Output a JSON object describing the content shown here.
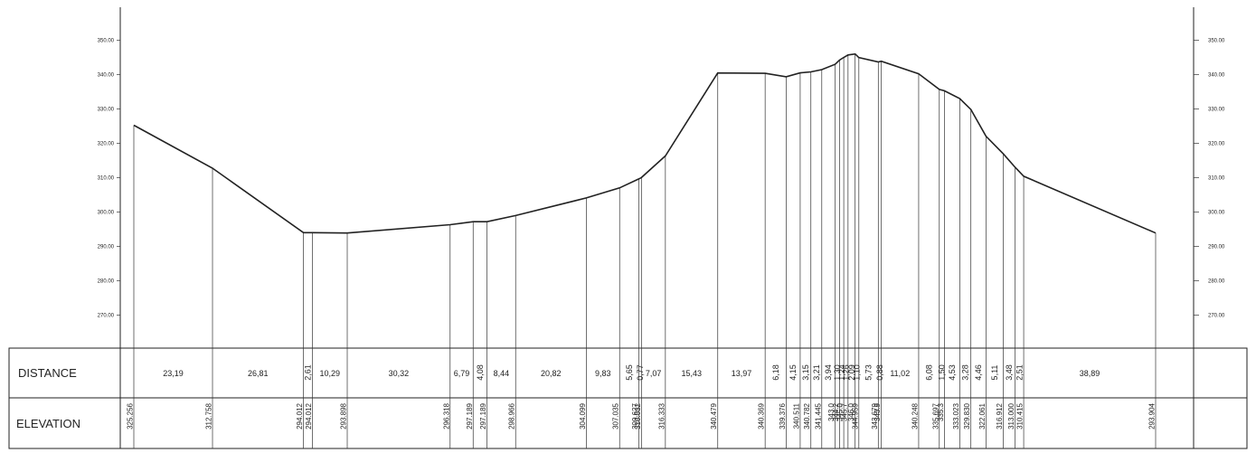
{
  "chart_data": {
    "type": "line",
    "title": "",
    "ylim": [
      265,
      355
    ],
    "y_ticks": [
      "350.00",
      "340.00",
      "330.00",
      "320.00",
      "310.00",
      "300.00",
      "290.00",
      "280.00",
      "270.00"
    ],
    "row_titles": {
      "distance": "DISTANCE",
      "elevation": "ELEVATION"
    },
    "chainage": [
      0,
      23.19,
      50.0,
      52.61,
      62.9,
      93.22,
      100.01,
      104.09,
      112.53,
      133.35,
      143.18,
      148.83,
      149.6,
      156.67,
      172.1,
      186.07,
      192.25,
      196.4,
      199.55,
      202.76,
      206.7,
      208.0,
      209.24,
      210.5,
      212.59,
      213.69,
      219.42,
      220.3,
      231.32,
      237.4,
      238.9,
      243.43,
      246.71,
      251.17,
      256.28,
      259.76,
      262.27,
      301.16
    ],
    "elevations": [
      325.256,
      312.758,
      294.012,
      294.012,
      293.898,
      296.318,
      297.189,
      297.189,
      298.966,
      304.099,
      307.035,
      309.627,
      310.032,
      316.333,
      340.479,
      340.369,
      339.376,
      340.511,
      340.782,
      341.445,
      343.0,
      344.2,
      345.0,
      345.7,
      346.0,
      344.959,
      343.679,
      343.9,
      340.248,
      335.697,
      335.3,
      333.023,
      329.83,
      322.061,
      316.912,
      313.0,
      310.415,
      293.904
    ],
    "distance_labels": [
      "23,19",
      "26,81",
      "2,61",
      "10,29",
      "30,32",
      "6,79",
      "4,08",
      "8,44",
      "20,82",
      "9,83",
      "5,65",
      "0,77",
      "7,07",
      "15,43",
      "13,97",
      "6,18",
      "4,15",
      "3,15",
      "3,21",
      "3,94",
      "1,30",
      "1,24",
      "1,26",
      "2,09",
      "1,10",
      "5,73",
      "0,88",
      "11,02",
      "6,08",
      "1,50",
      "4,53",
      "3,28",
      "4,46",
      "5,11",
      "3,48",
      "2,51",
      "38,89"
    ],
    "elevation_labels": [
      "325.256",
      "312.758",
      "294.012",
      "294.012",
      "293.898",
      "296.318",
      "297.189",
      "297.189",
      "298.966",
      "304.099",
      "307.035",
      "309.627",
      "310.032",
      "316.333",
      "340.479",
      "340.369",
      "339.376",
      "340.511",
      "340.782",
      "341.445",
      "343.0",
      "344.2",
      "345.0",
      "345.7",
      "346.0",
      "344.959",
      "343.679",
      "343.9",
      "340.248",
      "335.697",
      "335.3",
      "333.023",
      "329.830",
      "322.061",
      "316.912",
      "313.000",
      "310.415",
      "293.904"
    ]
  }
}
